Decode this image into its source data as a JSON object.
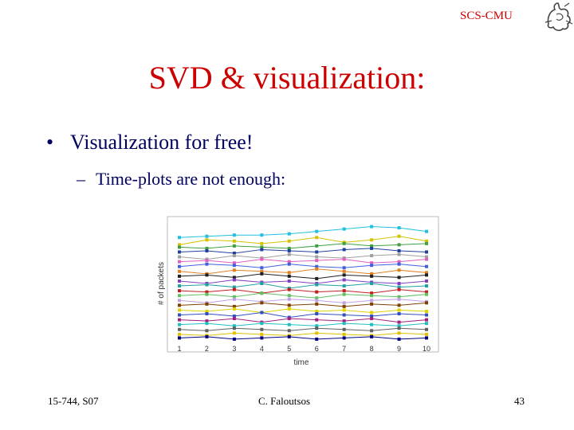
{
  "header": {
    "org": "SCS-CMU"
  },
  "slide": {
    "title": "SVD & visualization:",
    "bullet": "Visualization for free!",
    "bullet_symbol": "•",
    "sub_bullet": "Time-plots are not enough:",
    "sub_bullet_symbol": "–"
  },
  "footer": {
    "left": "15-744, S07",
    "center": "C. Faloutsos",
    "right": "43"
  },
  "colors": {
    "title": "#cc0000",
    "text": "#000060"
  },
  "chart_data": {
    "type": "line",
    "xlabel": "time",
    "ylabel": "# of packets",
    "x": [
      1,
      2,
      3,
      4,
      5,
      6,
      7,
      8,
      9,
      10
    ],
    "tick_labels": [
      "1",
      "2",
      "3",
      "4",
      "5",
      "6",
      "7",
      "8",
      "9",
      "10"
    ],
    "ylim": [
      0,
      100
    ],
    "series": [
      {
        "color": "#22c0e0",
        "values": [
          88,
          89,
          90,
          90,
          91,
          93,
          95,
          97,
          96,
          93
        ]
      },
      {
        "color": "#d4c400",
        "values": [
          82,
          86,
          85,
          83,
          85,
          88,
          84,
          86,
          89,
          85
        ]
      },
      {
        "color": "#40a040",
        "values": [
          80,
          79,
          81,
          80,
          79,
          81,
          83,
          81,
          82,
          83
        ]
      },
      {
        "color": "#2040a0",
        "values": [
          76,
          77,
          75,
          78,
          77,
          76,
          78,
          79,
          77,
          76
        ]
      },
      {
        "color": "#a0a0a0",
        "values": [
          72,
          70,
          73,
          71,
          74,
          72,
          71,
          73,
          74,
          72
        ]
      },
      {
        "color": "#e060c0",
        "values": [
          68,
          69,
          67,
          70,
          68,
          69,
          70,
          67,
          68,
          70
        ]
      },
      {
        "color": "#4060e0",
        "values": [
          64,
          66,
          65,
          63,
          66,
          64,
          63,
          65,
          66,
          64
        ]
      },
      {
        "color": "#e08020",
        "values": [
          60,
          58,
          61,
          60,
          59,
          62,
          60,
          58,
          61,
          59
        ]
      },
      {
        "color": "#202020",
        "values": [
          56,
          57,
          55,
          58,
          56,
          54,
          57,
          56,
          55,
          57
        ]
      },
      {
        "color": "#8040c0",
        "values": [
          52,
          50,
          53,
          51,
          52,
          50,
          53,
          51,
          50,
          52
        ]
      },
      {
        "color": "#20a0a0",
        "values": [
          48,
          49,
          47,
          50,
          46,
          49,
          48,
          50,
          47,
          48
        ]
      },
      {
        "color": "#c02020",
        "values": [
          44,
          43,
          45,
          42,
          45,
          43,
          44,
          42,
          45,
          43
        ]
      },
      {
        "color": "#60c060",
        "values": [
          40,
          41,
          39,
          42,
          40,
          38,
          41,
          40,
          39,
          41
        ]
      },
      {
        "color": "#c0a0e0",
        "values": [
          36,
          34,
          37,
          35,
          37,
          36,
          34,
          36,
          37,
          35
        ]
      },
      {
        "color": "#804000",
        "values": [
          32,
          33,
          31,
          34,
          32,
          33,
          31,
          33,
          32,
          34
        ]
      },
      {
        "color": "#e0d000",
        "values": [
          28,
          27,
          29,
          26,
          29,
          27,
          28,
          26,
          28,
          27
        ]
      },
      {
        "color": "#3050c0",
        "values": [
          24,
          25,
          23,
          26,
          22,
          25,
          24,
          23,
          25,
          24
        ]
      },
      {
        "color": "#a02080",
        "values": [
          20,
          19,
          21,
          18,
          21,
          20,
          19,
          21,
          18,
          20
        ]
      },
      {
        "color": "#20c0c0",
        "values": [
          16,
          17,
          15,
          17,
          16,
          15,
          17,
          16,
          15,
          17
        ]
      },
      {
        "color": "#606060",
        "values": [
          12,
          11,
          13,
          12,
          11,
          13,
          12,
          11,
          13,
          12
        ]
      },
      {
        "color": "#e0c000",
        "values": [
          8,
          7,
          9,
          8,
          7,
          9,
          8,
          7,
          9,
          8
        ]
      },
      {
        "color": "#000080",
        "values": [
          5,
          6,
          4,
          5,
          6,
          4,
          5,
          6,
          4,
          5
        ]
      }
    ]
  }
}
